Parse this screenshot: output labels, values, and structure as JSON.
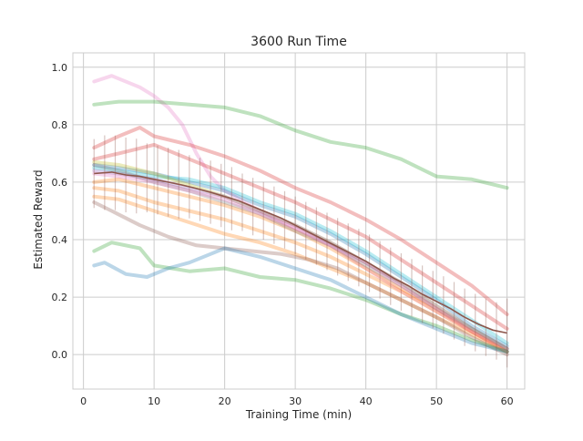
{
  "chart_data": {
    "type": "line",
    "title": "3600 Run Time",
    "xlabel": "Training Time (min)",
    "ylabel": "Estimated Reward",
    "xlim": [
      -1.5,
      62.5
    ],
    "ylim": [
      -0.12,
      1.05
    ],
    "xticks": [
      0,
      10,
      20,
      30,
      40,
      50,
      60
    ],
    "yticks": [
      0.0,
      0.2,
      0.4,
      0.6,
      0.8,
      1.0
    ],
    "xtick_labels": [
      "0",
      "10",
      "20",
      "30",
      "40",
      "50",
      "60"
    ],
    "ytick_labels": [
      "0.0",
      "0.2",
      "0.4",
      "0.6",
      "0.8",
      "1.0"
    ],
    "grid": true,
    "legend": "none",
    "colors": {
      "mean": "#8c564b",
      "runs": [
        "#1f77b4",
        "#ff7f0e",
        "#2ca02c",
        "#d62728",
        "#9467bd",
        "#8c564b",
        "#e377c2",
        "#7f7f7f",
        "#bcbd22",
        "#17becf"
      ]
    },
    "mean_series": {
      "x": [
        1.5,
        4,
        6,
        8,
        10,
        12,
        14,
        16,
        18,
        20,
        22,
        24,
        26,
        28,
        30,
        32,
        34,
        36,
        38,
        40,
        42,
        44,
        46,
        48,
        50,
        52,
        54,
        56,
        58,
        60
      ],
      "y": [
        0.63,
        0.635,
        0.625,
        0.62,
        0.61,
        0.6,
        0.59,
        0.578,
        0.565,
        0.55,
        0.535,
        0.515,
        0.495,
        0.475,
        0.45,
        0.425,
        0.4,
        0.375,
        0.35,
        0.325,
        0.295,
        0.265,
        0.24,
        0.21,
        0.185,
        0.16,
        0.13,
        0.105,
        0.085,
        0.075
      ]
    },
    "error_bars": {
      "x": [
        1.5,
        3,
        4.5,
        6,
        7.5,
        9,
        10.5,
        12,
        13.5,
        15,
        16.5,
        18,
        19.5,
        21,
        22.5,
        24,
        25.5,
        27,
        28.5,
        30,
        31.5,
        33,
        34.5,
        36,
        37.5,
        39,
        40.5,
        42,
        43.5,
        45,
        46.5,
        48,
        49.5,
        51,
        52.5,
        54,
        55.5,
        57,
        58.5,
        60
      ],
      "half_width": [
        0.12,
        0.13,
        0.13,
        0.13,
        0.13,
        0.12,
        0.12,
        0.12,
        0.12,
        0.11,
        0.11,
        0.11,
        0.11,
        0.11,
        0.1,
        0.1,
        0.1,
        0.1,
        0.1,
        0.1,
        0.1,
        0.1,
        0.1,
        0.1,
        0.1,
        0.1,
        0.1,
        0.1,
        0.1,
        0.1,
        0.1,
        0.1,
        0.1,
        0.1,
        0.1,
        0.1,
        0.1,
        0.1,
        0.1,
        0.12
      ]
    },
    "series": [
      {
        "color": "#e377c2",
        "x": [
          1.5,
          4,
          8,
          10,
          12,
          14,
          16,
          18,
          20,
          25,
          30,
          35,
          40,
          45,
          50,
          55,
          60
        ],
        "y": [
          0.95,
          0.97,
          0.93,
          0.9,
          0.86,
          0.8,
          0.7,
          0.62,
          0.57,
          0.5,
          0.44,
          0.38,
          0.3,
          0.22,
          0.15,
          0.08,
          0.02
        ]
      },
      {
        "color": "#2ca02c",
        "x": [
          1.5,
          5,
          10,
          15,
          20,
          25,
          30,
          35,
          40,
          45,
          50,
          55,
          60
        ],
        "y": [
          0.87,
          0.88,
          0.88,
          0.87,
          0.86,
          0.83,
          0.78,
          0.74,
          0.72,
          0.68,
          0.62,
          0.61,
          0.58
        ]
      },
      {
        "color": "#d62728",
        "x": [
          1.5,
          5,
          8,
          10,
          15,
          20,
          25,
          30,
          35,
          40,
          45,
          50,
          55,
          60
        ],
        "y": [
          0.72,
          0.76,
          0.79,
          0.76,
          0.73,
          0.69,
          0.64,
          0.58,
          0.53,
          0.47,
          0.4,
          0.32,
          0.24,
          0.14
        ]
      },
      {
        "color": "#d62728",
        "x": [
          1.5,
          5,
          10,
          15,
          20,
          25,
          30,
          35,
          40,
          45,
          50,
          55,
          60
        ],
        "y": [
          0.68,
          0.7,
          0.73,
          0.68,
          0.63,
          0.58,
          0.53,
          0.47,
          0.41,
          0.33,
          0.25,
          0.17,
          0.09
        ]
      },
      {
        "color": "#1f77b4",
        "x": [
          1.5,
          5,
          10,
          15,
          20,
          25,
          30,
          35,
          40,
          45,
          50,
          55,
          60
        ],
        "y": [
          0.66,
          0.65,
          0.63,
          0.6,
          0.57,
          0.52,
          0.48,
          0.42,
          0.35,
          0.27,
          0.19,
          0.1,
          0.03
        ]
      },
      {
        "color": "#17becf",
        "x": [
          1.5,
          5,
          10,
          15,
          20,
          25,
          30,
          35,
          40,
          45,
          50,
          55,
          60
        ],
        "y": [
          0.65,
          0.64,
          0.62,
          0.61,
          0.58,
          0.53,
          0.49,
          0.43,
          0.36,
          0.28,
          0.2,
          0.12,
          0.04
        ]
      },
      {
        "color": "#bcbd22",
        "x": [
          1.5,
          5,
          10,
          15,
          20,
          25,
          30,
          35,
          40,
          45,
          50,
          55,
          60
        ],
        "y": [
          0.67,
          0.66,
          0.63,
          0.59,
          0.55,
          0.5,
          0.45,
          0.39,
          0.32,
          0.25,
          0.17,
          0.09,
          0.02
        ]
      },
      {
        "color": "#9467bd",
        "x": [
          1.5,
          5,
          10,
          15,
          20,
          25,
          30,
          35,
          40,
          45,
          50,
          55,
          60
        ],
        "y": [
          0.64,
          0.63,
          0.61,
          0.58,
          0.55,
          0.5,
          0.45,
          0.39,
          0.32,
          0.25,
          0.17,
          0.09,
          0.02
        ]
      },
      {
        "color": "#ff7f0e",
        "x": [
          1.5,
          5,
          10,
          15,
          20,
          25,
          30,
          35,
          40,
          45,
          50,
          55,
          60
        ],
        "y": [
          0.6,
          0.61,
          0.58,
          0.55,
          0.52,
          0.48,
          0.43,
          0.37,
          0.3,
          0.23,
          0.16,
          0.08,
          0.01
        ]
      },
      {
        "color": "#ff7f0e",
        "x": [
          1.5,
          5,
          10,
          15,
          20,
          25,
          30,
          35,
          40,
          45,
          50,
          55,
          60
        ],
        "y": [
          0.58,
          0.57,
          0.53,
          0.5,
          0.47,
          0.43,
          0.39,
          0.34,
          0.28,
          0.22,
          0.15,
          0.08,
          0.01
        ]
      },
      {
        "color": "#ff7f0e",
        "x": [
          1.5,
          5,
          10,
          15,
          20,
          25,
          30,
          35,
          40,
          45,
          50,
          55,
          60
        ],
        "y": [
          0.55,
          0.54,
          0.5,
          0.46,
          0.42,
          0.39,
          0.35,
          0.3,
          0.25,
          0.19,
          0.13,
          0.07,
          0.01
        ]
      },
      {
        "color": "#8c564b",
        "x": [
          1.5,
          4,
          8,
          12,
          16,
          20,
          24,
          28,
          32,
          36,
          40,
          45,
          50,
          55,
          60
        ],
        "y": [
          0.53,
          0.5,
          0.45,
          0.41,
          0.38,
          0.37,
          0.36,
          0.35,
          0.33,
          0.3,
          0.25,
          0.19,
          0.13,
          0.06,
          0.0
        ]
      },
      {
        "color": "#7f7f7f",
        "x": [
          1.5,
          5,
          10,
          15,
          20,
          25,
          30,
          35,
          40,
          45,
          50,
          55,
          60
        ],
        "y": [
          0.66,
          0.64,
          0.6,
          0.57,
          0.53,
          0.49,
          0.43,
          0.38,
          0.31,
          0.24,
          0.16,
          0.09,
          0.02
        ]
      },
      {
        "color": "#e377c2",
        "x": [
          1.5,
          5,
          10,
          15,
          20,
          25,
          30,
          35,
          40,
          45,
          50,
          55,
          60
        ],
        "y": [
          0.63,
          0.62,
          0.6,
          0.57,
          0.54,
          0.49,
          0.44,
          0.38,
          0.32,
          0.24,
          0.16,
          0.08,
          0.01
        ]
      },
      {
        "color": "#2ca02c",
        "x": [
          1.5,
          4,
          8,
          10,
          15,
          20,
          25,
          30,
          35,
          40,
          45,
          50,
          55,
          60
        ],
        "y": [
          0.36,
          0.39,
          0.37,
          0.31,
          0.29,
          0.3,
          0.27,
          0.26,
          0.23,
          0.19,
          0.14,
          0.1,
          0.05,
          0.01
        ]
      },
      {
        "color": "#1f77b4",
        "x": [
          1.5,
          3,
          6,
          9,
          12,
          15,
          18,
          20,
          25,
          30,
          35,
          40,
          45,
          50,
          55,
          60
        ],
        "y": [
          0.31,
          0.32,
          0.28,
          0.27,
          0.3,
          0.32,
          0.35,
          0.37,
          0.34,
          0.3,
          0.26,
          0.2,
          0.14,
          0.09,
          0.04,
          0.01
        ]
      }
    ]
  }
}
